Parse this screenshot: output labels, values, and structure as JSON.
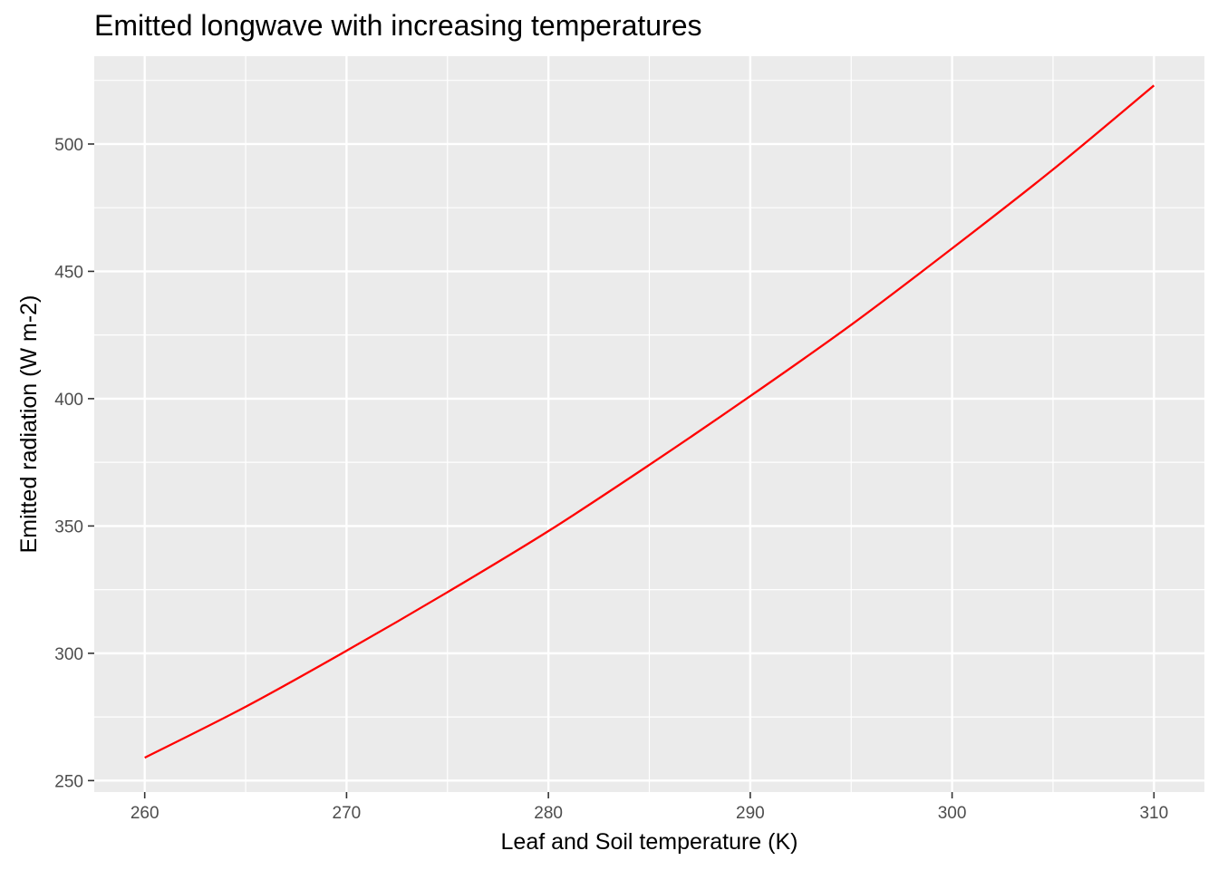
{
  "chart_data": {
    "type": "line",
    "title": "Emitted longwave with increasing temperatures",
    "xlabel": "Leaf and Soil temperature (K)",
    "ylabel": "Emitted radiation (W m-2)",
    "xlim": [
      257.5,
      312.5
    ],
    "ylim": [
      245.5,
      534.5
    ],
    "x_ticks": [
      260,
      270,
      280,
      290,
      300,
      310
    ],
    "y_ticks": [
      250,
      300,
      350,
      400,
      450,
      500
    ],
    "grid": true,
    "colors": {
      "panel": "#ebebeb",
      "grid": "#ffffff",
      "line": "#ff0000"
    },
    "series": [
      {
        "name": "emitted radiation",
        "color": "#ff0000",
        "x": [
          260,
          265,
          270,
          275,
          280,
          285,
          290,
          295,
          300,
          305,
          310
        ],
        "y": [
          259,
          279,
          301,
          324,
          348,
          374,
          401,
          429,
          459,
          490,
          523
        ]
      }
    ]
  }
}
